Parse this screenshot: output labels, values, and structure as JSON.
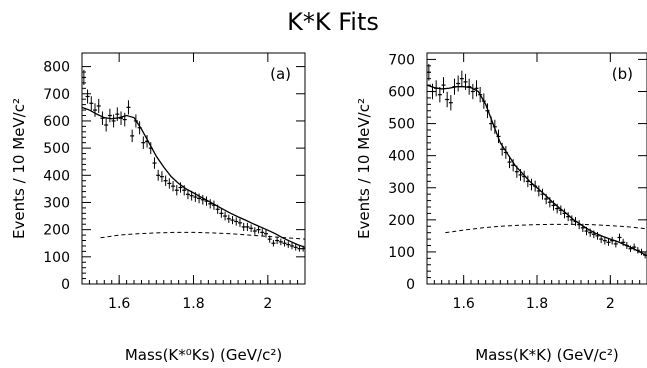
{
  "figure_title": "K*K Fits",
  "chart_data": [
    {
      "type": "scatter",
      "panel_label": "(a)",
      "ylabel": "Events / 10 MeV/c²",
      "xlabel": "Mass(K*⁰Ks) (GeV/c²)",
      "xlim": [
        1.5,
        2.1
      ],
      "ylim": [
        0,
        850
      ],
      "xticks": [
        1.6,
        1.8,
        2.0
      ],
      "xtick_labels": [
        "1.6",
        "1.8",
        "2"
      ],
      "yticks": [
        0,
        100,
        200,
        300,
        400,
        500,
        600,
        700,
        800
      ],
      "data": {
        "x": [
          1.505,
          1.515,
          1.525,
          1.535,
          1.545,
          1.555,
          1.565,
          1.575,
          1.585,
          1.595,
          1.605,
          1.615,
          1.625,
          1.635,
          1.645,
          1.655,
          1.665,
          1.675,
          1.685,
          1.695,
          1.705,
          1.715,
          1.725,
          1.735,
          1.745,
          1.755,
          1.765,
          1.775,
          1.785,
          1.795,
          1.805,
          1.815,
          1.825,
          1.835,
          1.845,
          1.855,
          1.865,
          1.875,
          1.885,
          1.895,
          1.905,
          1.915,
          1.925,
          1.935,
          1.945,
          1.955,
          1.965,
          1.975,
          1.985,
          1.995,
          2.005,
          2.015,
          2.025,
          2.035,
          2.045,
          2.055,
          2.065,
          2.075,
          2.085,
          2.095
        ],
        "y": [
          760,
          690,
          665,
          640,
          655,
          610,
          585,
          620,
          600,
          625,
          610,
          605,
          650,
          545,
          600,
          575,
          520,
          525,
          500,
          445,
          400,
          395,
          380,
          370,
          360,
          345,
          355,
          345,
          330,
          325,
          320,
          315,
          310,
          305,
          295,
          290,
          275,
          260,
          250,
          240,
          235,
          230,
          225,
          210,
          210,
          205,
          195,
          200,
          190,
          185,
          165,
          150,
          160,
          155,
          150,
          145,
          140,
          135,
          130,
          130
        ],
        "errors": [
          28,
          26,
          26,
          25,
          26,
          25,
          24,
          25,
          24,
          25,
          25,
          25,
          26,
          23,
          24,
          24,
          23,
          23,
          22,
          21,
          20,
          20,
          19,
          19,
          19,
          19,
          19,
          19,
          18,
          18,
          18,
          18,
          18,
          17,
          17,
          17,
          17,
          16,
          16,
          15,
          15,
          15,
          15,
          15,
          15,
          14,
          14,
          14,
          14,
          14,
          13,
          12,
          13,
          12,
          12,
          12,
          12,
          12,
          11,
          11
        ]
      },
      "fit": {
        "x": [
          1.5,
          1.52,
          1.54,
          1.56,
          1.58,
          1.6,
          1.62,
          1.64,
          1.66,
          1.68,
          1.7,
          1.72,
          1.74,
          1.76,
          1.78,
          1.8,
          1.82,
          1.84,
          1.86,
          1.88,
          1.9,
          1.92,
          1.94,
          1.96,
          1.98,
          2.0,
          2.02,
          2.04,
          2.06,
          2.08,
          2.1
        ],
        "y": [
          650,
          640,
          625,
          612,
          608,
          612,
          620,
          612,
          570,
          520,
          470,
          430,
          395,
          370,
          350,
          335,
          320,
          305,
          290,
          275,
          260,
          247,
          235,
          222,
          210,
          198,
          185,
          170,
          157,
          145,
          135
        ]
      },
      "background": {
        "x": [
          1.55,
          1.6,
          1.65,
          1.7,
          1.75,
          1.8,
          1.85,
          1.9,
          1.95,
          2.0,
          2.05,
          2.1
        ],
        "y": [
          170,
          180,
          185,
          188,
          190,
          190,
          188,
          185,
          180,
          175,
          170,
          165
        ]
      }
    },
    {
      "type": "scatter",
      "panel_label": "(b)",
      "ylabel": "Events / 10 MeV/c²",
      "xlabel": "Mass(K*K) (GeV/c²)",
      "xlim": [
        1.5,
        2.1
      ],
      "ylim": [
        0,
        720
      ],
      "xticks": [
        1.6,
        1.8,
        2.0
      ],
      "xtick_labels": [
        "1.6",
        "1.8",
        "2"
      ],
      "yticks": [
        0,
        100,
        200,
        300,
        400,
        500,
        600,
        700
      ],
      "data": {
        "x": [
          1.505,
          1.515,
          1.525,
          1.535,
          1.545,
          1.555,
          1.565,
          1.575,
          1.585,
          1.595,
          1.605,
          1.615,
          1.625,
          1.635,
          1.645,
          1.655,
          1.665,
          1.675,
          1.685,
          1.695,
          1.705,
          1.715,
          1.725,
          1.735,
          1.745,
          1.755,
          1.765,
          1.775,
          1.785,
          1.795,
          1.805,
          1.815,
          1.825,
          1.835,
          1.845,
          1.855,
          1.865,
          1.875,
          1.885,
          1.895,
          1.905,
          1.915,
          1.925,
          1.935,
          1.945,
          1.955,
          1.965,
          1.975,
          1.985,
          1.995,
          2.005,
          2.015,
          2.025,
          2.035,
          2.045,
          2.055,
          2.065,
          2.075,
          2.085,
          2.095
        ],
        "y": [
          660,
          600,
          610,
          590,
          620,
          575,
          565,
          615,
          625,
          640,
          630,
          615,
          600,
          610,
          590,
          570,
          540,
          500,
          490,
          460,
          420,
          410,
          380,
          370,
          350,
          340,
          335,
          320,
          310,
          305,
          290,
          280,
          265,
          255,
          245,
          235,
          230,
          220,
          210,
          200,
          195,
          185,
          175,
          165,
          160,
          155,
          150,
          140,
          135,
          130,
          135,
          125,
          145,
          130,
          120,
          110,
          115,
          105,
          100,
          90
        ],
        "errors": [
          26,
          24,
          25,
          24,
          25,
          24,
          24,
          25,
          25,
          25,
          25,
          25,
          24,
          25,
          24,
          24,
          23,
          22,
          22,
          21,
          20,
          20,
          19,
          19,
          19,
          18,
          18,
          18,
          18,
          17,
          17,
          17,
          16,
          16,
          16,
          15,
          15,
          15,
          14,
          14,
          14,
          14,
          13,
          13,
          13,
          12,
          12,
          12,
          12,
          11,
          12,
          11,
          12,
          11,
          11,
          10,
          11,
          10,
          10,
          10
        ]
      },
      "fit": {
        "x": [
          1.5,
          1.52,
          1.54,
          1.56,
          1.58,
          1.6,
          1.62,
          1.64,
          1.66,
          1.68,
          1.7,
          1.72,
          1.74,
          1.76,
          1.78,
          1.8,
          1.82,
          1.84,
          1.86,
          1.88,
          1.9,
          1.92,
          1.94,
          1.96,
          1.98,
          2.0,
          2.02,
          2.04,
          2.06,
          2.08,
          2.1
        ],
        "y": [
          620,
          612,
          608,
          610,
          615,
          615,
          612,
          600,
          560,
          500,
          440,
          405,
          370,
          345,
          320,
          300,
          280,
          258,
          238,
          220,
          200,
          185,
          170,
          158,
          148,
          140,
          132,
          122,
          112,
          100,
          88
        ]
      },
      "background": {
        "x": [
          1.55,
          1.6,
          1.65,
          1.7,
          1.75,
          1.8,
          1.85,
          1.9,
          1.95,
          2.0,
          2.05,
          2.1
        ],
        "y": [
          160,
          168,
          175,
          180,
          183,
          185,
          186,
          186,
          185,
          182,
          178,
          172
        ]
      }
    }
  ]
}
